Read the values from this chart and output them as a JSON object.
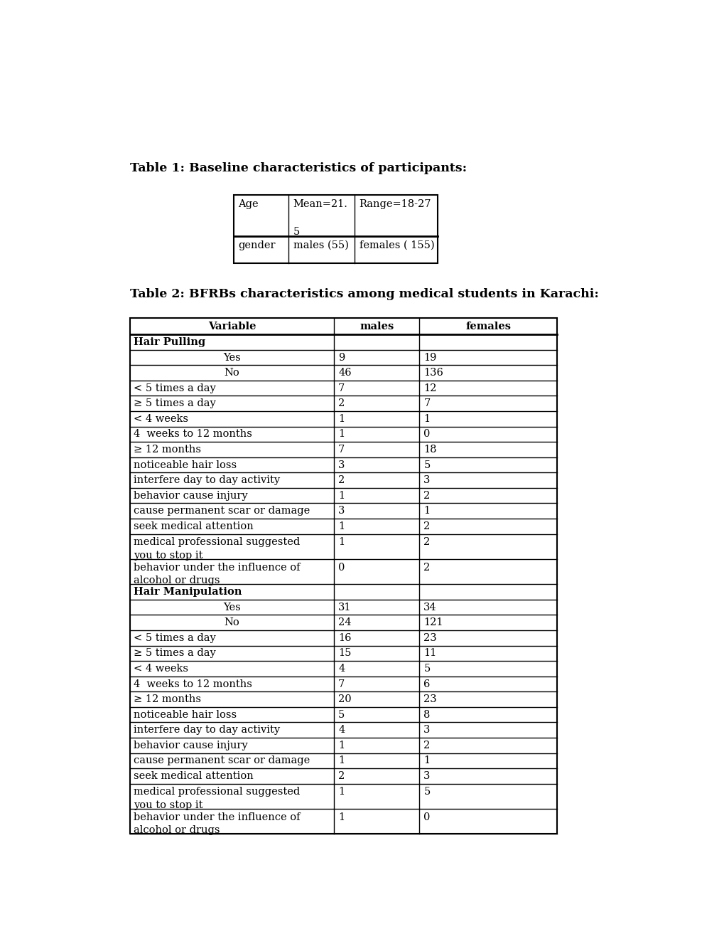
{
  "title1": "Table 1: Baseline characteristics of participants:",
  "title2": "Table 2: BFRBs characteristics among medical students in Karachi:",
  "table1_rows": [
    [
      "Age",
      "Mean=21.\n\n5",
      "Range=18-27"
    ],
    [
      "gender",
      "males (55)",
      "females ( 155)"
    ]
  ],
  "table2_headers": [
    "Variable",
    "males",
    "females"
  ],
  "table2_rows": [
    [
      "Hair Pulling",
      "",
      "",
      "bold",
      false
    ],
    [
      "Yes",
      "9",
      "19",
      "center",
      false
    ],
    [
      "No",
      "46",
      "136",
      "center",
      false
    ],
    [
      "< 5 times a day",
      "7",
      "12",
      "normal",
      false
    ],
    [
      "≥ 5 times a day",
      "2",
      "7",
      "normal",
      false
    ],
    [
      "< 4 weeks",
      "1",
      "1",
      "normal",
      false
    ],
    [
      "4  weeks to 12 months",
      "1",
      "0",
      "normal",
      false
    ],
    [
      "≥ 12 months",
      "7",
      "18",
      "normal",
      false
    ],
    [
      "noticeable hair loss",
      "3",
      "5",
      "normal",
      false
    ],
    [
      "interfere day to day activity",
      "2",
      "3",
      "normal",
      false
    ],
    [
      "behavior cause injury",
      "1",
      "2",
      "normal",
      false
    ],
    [
      "cause permanent scar or damage",
      "3",
      "1",
      "normal",
      false
    ],
    [
      "seek medical attention",
      "1",
      "2",
      "normal",
      false
    ],
    [
      "medical professional suggested\nyou to stop it",
      "1",
      "2",
      "normal",
      true
    ],
    [
      "behavior under the influence of\nalcohol or drugs",
      "0",
      "2",
      "normal",
      true
    ],
    [
      "Hair Manipulation",
      "",
      "",
      "bold",
      false
    ],
    [
      "Yes",
      "31",
      "34",
      "center",
      false
    ],
    [
      "No",
      "24",
      "121",
      "center",
      false
    ],
    [
      "< 5 times a day",
      "16",
      "23",
      "normal",
      false
    ],
    [
      "≥ 5 times a day",
      "15",
      "11",
      "normal",
      false
    ],
    [
      "< 4 weeks",
      "4",
      "5",
      "normal",
      false
    ],
    [
      "4  weeks to 12 months",
      "7",
      "6",
      "normal",
      false
    ],
    [
      "≥ 12 months",
      "20",
      "23",
      "normal",
      false
    ],
    [
      "noticeable hair loss",
      "5",
      "8",
      "normal",
      false
    ],
    [
      "interfere day to day activity",
      "4",
      "3",
      "normal",
      false
    ],
    [
      "behavior cause injury",
      "1",
      "2",
      "normal",
      false
    ],
    [
      "cause permanent scar or damage",
      "1",
      "1",
      "normal",
      false
    ],
    [
      "seek medical attention",
      "2",
      "3",
      "normal",
      false
    ],
    [
      "medical professional suggested\nyou to stop it",
      "1",
      "5",
      "normal",
      true
    ],
    [
      "behavior under the influence of\nalcohol or drugs",
      "1",
      "0",
      "normal",
      true
    ]
  ],
  "bg_color": "#ffffff",
  "text_color": "#000000",
  "title_fontsize": 12.5,
  "table_fontsize": 10.5
}
